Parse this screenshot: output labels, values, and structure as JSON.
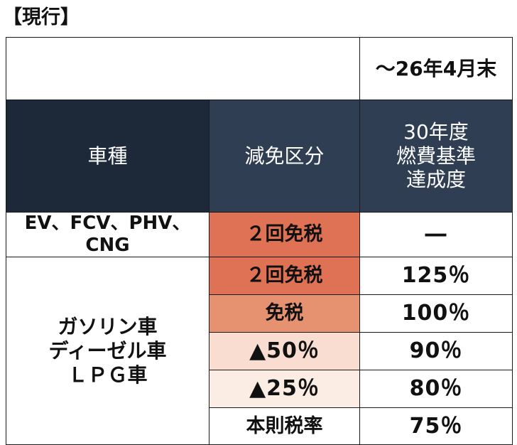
{
  "title": "【現行】",
  "period_header": "～26年4月末",
  "headers": {
    "vehicle": "車種",
    "category": "減免区分",
    "achievement": [
      "30年度",
      "燃費基準",
      "達成度"
    ]
  },
  "rows": {
    "ev": {
      "vehicle": "EV、FCV、PHV、CNG",
      "category": "２回免税",
      "achievement": "―"
    },
    "gasoline_vehicle": [
      "ガソリン車",
      "ディーゼル車",
      "ＬＰＧ車"
    ],
    "gasoline": [
      {
        "category": "２回免税",
        "achievement": "125％"
      },
      {
        "category": "免税",
        "achievement": "100％"
      },
      {
        "category": "▲50％",
        "achievement": "90％"
      },
      {
        "category": "▲25％",
        "achievement": "80％"
      },
      {
        "category": "本則税率",
        "achievement": "75％"
      }
    ]
  },
  "colors": {
    "header_dark": "#1d2838",
    "header": "#2f3e53",
    "twice_exempt": "#df7254",
    "exempt": "#e6916f",
    "half": "#f8ddd0",
    "quarter": "#fbece4"
  }
}
